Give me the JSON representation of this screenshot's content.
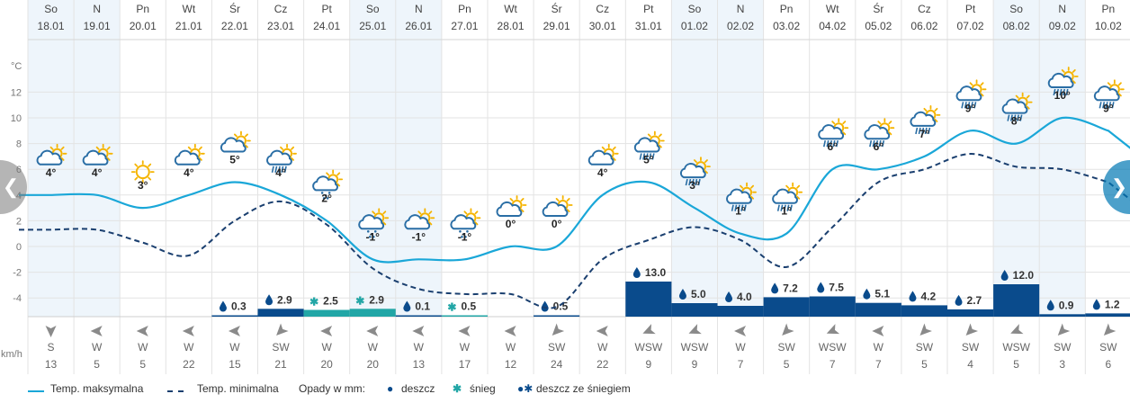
{
  "chart_data": {
    "type": "line",
    "x": [
      "18.01",
      "19.01",
      "20.01",
      "21.01",
      "22.01",
      "23.01",
      "24.01",
      "25.01",
      "26.01",
      "27.01",
      "28.01",
      "29.01",
      "30.01",
      "31.01",
      "01.02",
      "02.02",
      "03.02",
      "04.02",
      "05.02",
      "06.02",
      "07.02",
      "08.02",
      "09.02",
      "10.02"
    ],
    "days": [
      "So",
      "N",
      "Pn",
      "Wt",
      "Śr",
      "Cz",
      "Pt",
      "So",
      "N",
      "Pn",
      "Wt",
      "Śr",
      "Cz",
      "Pt",
      "So",
      "N",
      "Pn",
      "Wt",
      "Śr",
      "Cz",
      "Pt",
      "So",
      "N",
      "Pn"
    ],
    "weekend": [
      true,
      true,
      false,
      false,
      false,
      false,
      false,
      true,
      true,
      false,
      false,
      false,
      false,
      false,
      true,
      true,
      false,
      false,
      false,
      false,
      false,
      true,
      true,
      false
    ],
    "series": [
      {
        "name": "Temp. maksymalna",
        "values": [
          4,
          4,
          3,
          4,
          5,
          4,
          2,
          -1,
          -1,
          -1,
          0,
          0,
          4,
          5,
          3,
          1,
          1,
          6,
          6,
          7,
          9,
          8,
          10,
          9
        ]
      },
      {
        "name": "Temp. minimalna",
        "values": [
          1.3,
          1.3,
          0.3,
          -0.7,
          2.0,
          3.5,
          1.7,
          -1.7,
          -3.3,
          -3.7,
          -3.7,
          -4.7,
          -1.0,
          0.5,
          1.5,
          0.5,
          -1.6,
          1.5,
          5.0,
          6.0,
          7.2,
          6.2,
          6.0,
          5.0
        ]
      }
    ],
    "temp_labels": [
      "4°",
      "4°",
      "3°",
      "4°",
      "5°",
      "4°",
      "2°",
      "-1°",
      "-1°",
      "-1°",
      "0°",
      "0°",
      "4°",
      "5°",
      "3°",
      "1°",
      "1°",
      "6°",
      "6°",
      "7°",
      "9°",
      "8°",
      "10°",
      "9°"
    ],
    "weather_icons": [
      "partly-cloudy-icon",
      "partly-cloudy-icon",
      "sun-icon",
      "partly-cloudy-icon",
      "cloud-sun-small-icon",
      "cloud-rain-sun-icon",
      "cloud-snow-sun-icon",
      "cloud-snow-sun-icon",
      "partly-cloudy-icon",
      "cloud-snow-sun-icon",
      "partly-cloudy-icon",
      "partly-cloudy-icon",
      "partly-cloudy-icon",
      "cloud-rain-sun-icon",
      "cloud-rain-sun-icon",
      "cloud-rain-sun-icon",
      "cloud-rain-sun-icon",
      "cloud-rain-sun-icon",
      "cloud-rain-sun-icon",
      "cloud-rain-sun-icon",
      "cloud-rain-sun-icon",
      "cloud-rain-sun-icon",
      "cloud-rain-sun-icon",
      "cloud-rain-sun-icon"
    ],
    "y_unit": "°C",
    "y_ticks": [
      12,
      10,
      8,
      6,
      4,
      2,
      0,
      -2,
      -4
    ],
    "ylim": [
      -6,
      14
    ],
    "grid": true,
    "precipitation": {
      "values": [
        0,
        0,
        0,
        0,
        0.3,
        2.9,
        2.5,
        2.9,
        0.1,
        0.5,
        0,
        0.5,
        0,
        13.0,
        5.0,
        4.0,
        7.2,
        7.5,
        5.1,
        4.2,
        2.7,
        12.0,
        0.9,
        1.2
      ],
      "labels": [
        "",
        "",
        "",
        "",
        "0.3",
        "2.9",
        "2.5",
        "2.9",
        "0.1",
        "0.5",
        "",
        "0.5",
        "",
        "13.0",
        "5.0",
        "4.0",
        "7.2",
        "7.5",
        "5.1",
        "4.2",
        "2.7",
        "12.0",
        "0.9",
        "1.2"
      ],
      "types": [
        "",
        "",
        "",
        "",
        "rain",
        "rain",
        "snow",
        "snow",
        "rain",
        "snow",
        "",
        "rain",
        "",
        "rain",
        "rain",
        "rain",
        "rain",
        "rain",
        "rain",
        "rain",
        "rain",
        "rain",
        "rain",
        "rain"
      ],
      "max": 14
    },
    "wind": {
      "unit": "km/h",
      "directions": [
        "S",
        "W",
        "W",
        "W",
        "W",
        "SW",
        "W",
        "W",
        "W",
        "W",
        "W",
        "SW",
        "W",
        "WSW",
        "WSW",
        "W",
        "SW",
        "WSW",
        "W",
        "SW",
        "SW",
        "WSW",
        "SW",
        "SW"
      ],
      "speeds": [
        13,
        5,
        5,
        22,
        15,
        21,
        20,
        20,
        13,
        17,
        12,
        24,
        22,
        9,
        9,
        7,
        5,
        7,
        7,
        5,
        4,
        5,
        3,
        6
      ]
    }
  },
  "legend": {
    "max_label": "Temp. maksymalna",
    "min_label": "Temp. minimalna",
    "precip_label": "Opady w mm:",
    "rain_icon": "💧",
    "rain_label": "deszcz",
    "snow_icon": "✱",
    "snow_label": "śnieg",
    "mix_icon": "💧✱",
    "mix_label": "deszcz ze śniegiem"
  },
  "colors": {
    "max_line": "#1aa7d8",
    "min_line": "#1a3f6f",
    "rain": "#0a4b8c",
    "snow": "#22a6a6",
    "weekend": "#eef5fb",
    "grid": "#e3e3e3",
    "sun": "#f5b400",
    "cloud": "#2a6ea5",
    "cloud_fill": "#ffffff"
  },
  "nav": {
    "prev_icon": "chevron-left-icon",
    "next_icon": "chevron-right-icon"
  }
}
